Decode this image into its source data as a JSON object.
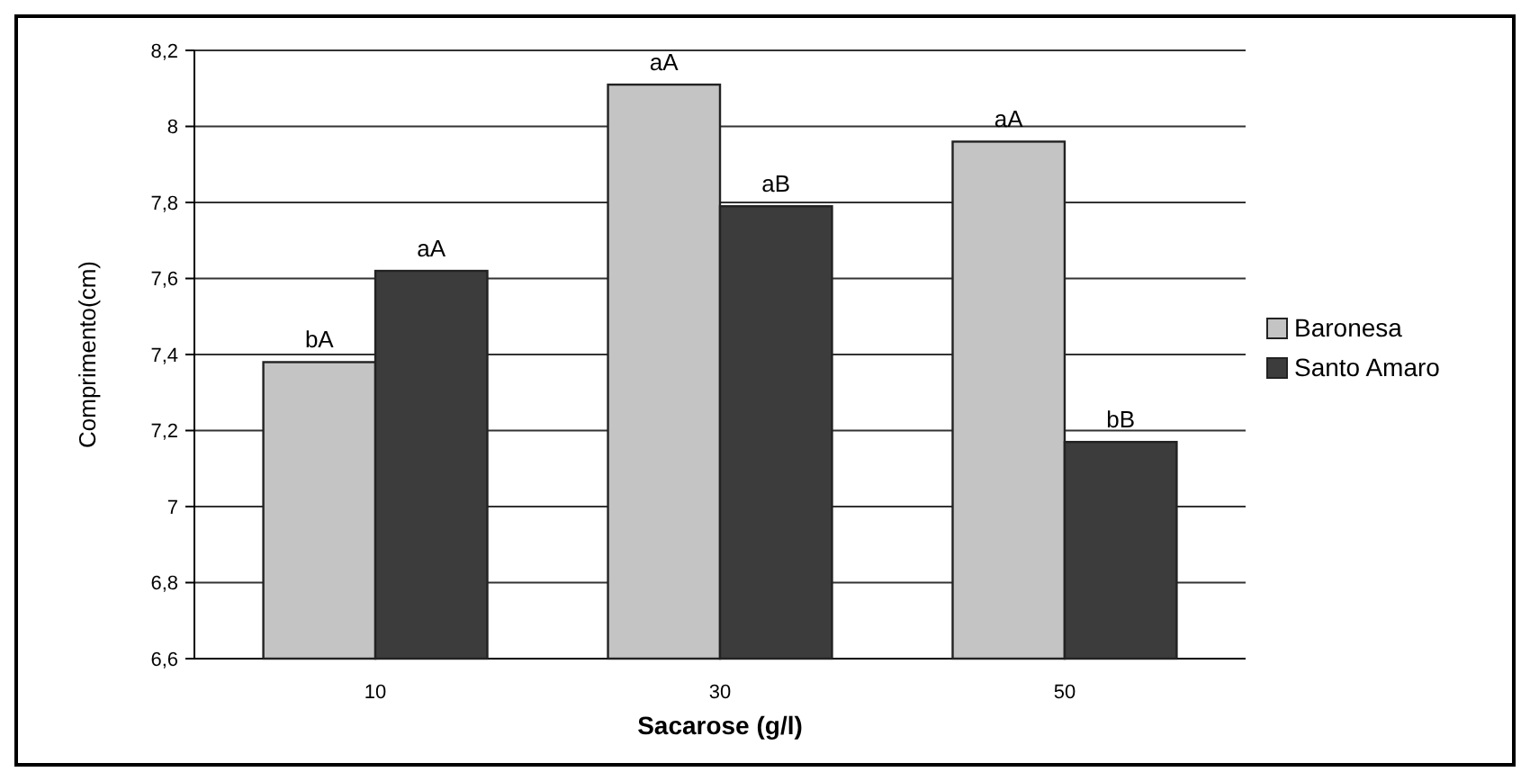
{
  "chart_data": {
    "type": "bar",
    "xlabel": "Sacarose (g/l)",
    "ylabel": "Comprimento(cm)",
    "categories": [
      "10",
      "30",
      "50"
    ],
    "series": [
      {
        "name": "Baronesa",
        "color": "#c4c4c4",
        "values": [
          7.38,
          8.11,
          7.96
        ]
      },
      {
        "name": "Santo Amaro",
        "color": "#3c3c3c",
        "values": [
          7.62,
          7.79,
          7.17
        ]
      }
    ],
    "ylim": [
      6.6,
      8.2
    ],
    "yticks": [
      {
        "value": 6.6,
        "label": "6,6"
      },
      {
        "value": 6.8,
        "label": "6,8"
      },
      {
        "value": 7,
        "label": "7"
      },
      {
        "value": 7.2,
        "label": "7,2"
      },
      {
        "value": 7.4,
        "label": "7,4"
      },
      {
        "value": 7.6,
        "label": "7,6"
      },
      {
        "value": 7.8,
        "label": "7,8"
      },
      {
        "value": 8,
        "label": "8"
      },
      {
        "value": 8.2,
        "label": "8,2"
      }
    ],
    "grid": "y",
    "legend": "right",
    "annotations": [
      {
        "text": "bA",
        "x": "10",
        "y": 7.38
      },
      {
        "text": "aA",
        "x": "10",
        "y": 7.62
      },
      {
        "text": "aA",
        "x": "30",
        "y": 8.11
      },
      {
        "text": "aB",
        "x": "30",
        "y": 7.79
      },
      {
        "text": "aA",
        "x": "50",
        "y": 7.96
      },
      {
        "text": "bB",
        "x": "50",
        "y": 7.17
      }
    ]
  }
}
